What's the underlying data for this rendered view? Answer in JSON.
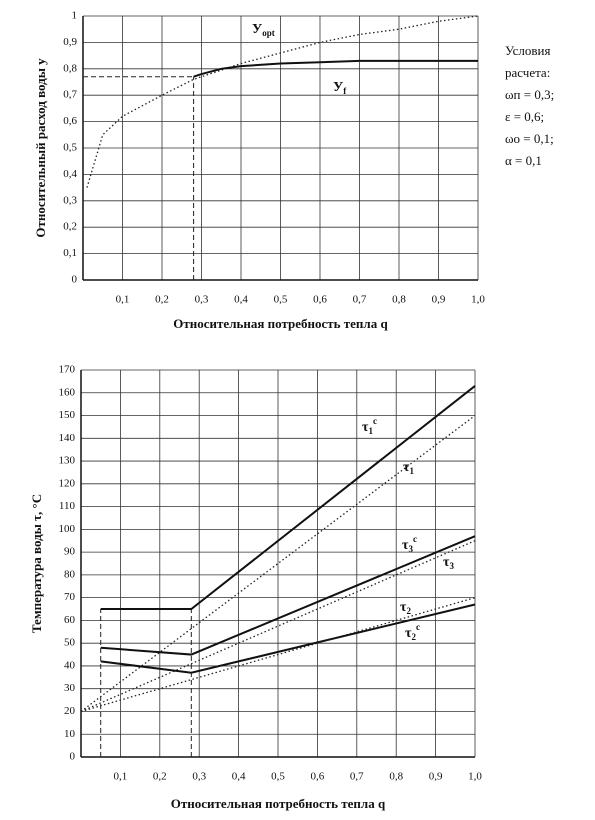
{
  "chart_data": [
    {
      "type": "line",
      "x_label": "Относительная потребность тепла q",
      "y_label": "Относительный расход воды у",
      "xlim": [
        0,
        1
      ],
      "ylim": [
        0,
        1
      ],
      "grid": true,
      "xticks": [
        {
          "value": 0.1,
          "label": "0,1"
        },
        {
          "value": 0.2,
          "label": "0,2"
        },
        {
          "value": 0.3,
          "label": "0,3"
        },
        {
          "value": 0.4,
          "label": "0,4"
        },
        {
          "value": 0.5,
          "label": "0,5"
        },
        {
          "value": 0.6,
          "label": "0,6"
        },
        {
          "value": 0.7,
          "label": "0,7"
        },
        {
          "value": 0.8,
          "label": "0,8"
        },
        {
          "value": 0.9,
          "label": "0,9"
        },
        {
          "value": 1,
          "label": "1,0"
        }
      ],
      "yticks": [
        0,
        {
          "value": 0.1,
          "label": "0,1"
        },
        {
          "value": 0.2,
          "label": "0,2"
        },
        {
          "value": 0.3,
          "label": "0,3"
        },
        {
          "value": 0.4,
          "label": "0,4"
        },
        {
          "value": 0.5,
          "label": "0,5"
        },
        {
          "value": 0.6,
          "label": "0,6"
        },
        {
          "value": 0.7,
          "label": "0,7"
        },
        {
          "value": 0.8,
          "label": "0,8"
        },
        {
          "value": 0.9,
          "label": "0,9"
        },
        1
      ],
      "series": [
        {
          "style": "dotted",
          "color": "#222",
          "x": [
            0.01,
            0.05,
            0.1,
            0.2,
            0.28,
            0.4,
            0.5,
            0.6,
            0.7,
            0.8,
            0.9,
            1.0
          ],
          "values": [
            0.35,
            0.55,
            0.62,
            0.7,
            0.76,
            0.82,
            0.86,
            0.9,
            0.93,
            0.95,
            0.98,
            1.0
          ]
        },
        {
          "style": "solid",
          "color": "#111",
          "x": [
            0.28,
            0.3,
            0.35,
            0.4,
            0.5,
            0.6,
            0.7,
            1.0
          ],
          "values": [
            0.77,
            0.78,
            0.8,
            0.81,
            0.82,
            0.825,
            0.83,
            0.83
          ]
        }
      ],
      "guides": [
        {
          "x": [
            0.28,
            0.28
          ],
          "values": [
            0,
            0.77
          ]
        },
        {
          "x": [
            0,
            0.28
          ],
          "values": [
            0.77,
            0.77
          ]
        }
      ],
      "annotations": [
        {
          "text": "У",
          "sub": "opt"
        },
        {
          "text": "У",
          "sub": "f"
        }
      ],
      "note": [
        "Условия",
        "расчета:",
        "ωп = 0,3;",
        "ε = 0,6;",
        "ωо = 0,1;",
        "α = 0,1"
      ]
    },
    {
      "type": "line",
      "x_label": "Относительная потребность тепла q",
      "y_label": "Температура воды τ, °С",
      "xlim": [
        0,
        1
      ],
      "ylim": [
        0,
        170
      ],
      "grid": true,
      "xticks": [
        {
          "value": 0.1,
          "label": "0,1"
        },
        {
          "value": 0.2,
          "label": "0,2"
        },
        {
          "value": 0.3,
          "label": "0,3"
        },
        {
          "value": 0.4,
          "label": "0,4"
        },
        {
          "value": 0.5,
          "label": "0,5"
        },
        {
          "value": 0.6,
          "label": "0,6"
        },
        {
          "value": 0.7,
          "label": "0,7"
        },
        {
          "value": 0.8,
          "label": "0,8"
        },
        {
          "value": 0.9,
          "label": "0,9"
        },
        {
          "value": 1,
          "label": "1,0"
        }
      ],
      "yticks": [
        0,
        10,
        20,
        30,
        40,
        50,
        60,
        70,
        80,
        90,
        100,
        110,
        120,
        130,
        140,
        150,
        160,
        170
      ],
      "series": [
        {
          "style": "solid",
          "color": "#111",
          "x": [
            0.05,
            0.28,
            1.0
          ],
          "values": [
            65,
            65,
            163
          ]
        },
        {
          "style": "dotted",
          "color": "#222",
          "x": [
            0,
            1.0
          ],
          "values": [
            20,
            150
          ]
        },
        {
          "style": "solid",
          "color": "#111",
          "x": [
            0.05,
            0.28,
            1.0
          ],
          "values": [
            48,
            45,
            97
          ]
        },
        {
          "style": "dotted",
          "color": "#222",
          "x": [
            0,
            1.0
          ],
          "values": [
            20,
            95
          ]
        },
        {
          "style": "solid",
          "color": "#111",
          "x": [
            0.05,
            0.28,
            1.0
          ],
          "values": [
            42,
            37,
            67
          ]
        },
        {
          "style": "dotted",
          "color": "#222",
          "x": [
            0,
            1.0
          ],
          "values": [
            20,
            70
          ]
        }
      ],
      "guides": [
        {
          "x": [
            0.05,
            0.05
          ],
          "values": [
            0,
            65
          ]
        },
        {
          "x": [
            0.28,
            0.28
          ],
          "values": [
            0,
            65
          ]
        }
      ],
      "annotations": [
        {
          "text": "τ",
          "sub": "1",
          "sup": "c"
        },
        {
          "text": "τ",
          "sub": "1"
        },
        {
          "text": "τ",
          "sub": "3",
          "sup": "c"
        },
        {
          "text": "τ",
          "sub": "3"
        },
        {
          "text": "τ",
          "sub": "2"
        },
        {
          "text": "τ",
          "sub": "2",
          "sup": "c"
        }
      ]
    }
  ]
}
